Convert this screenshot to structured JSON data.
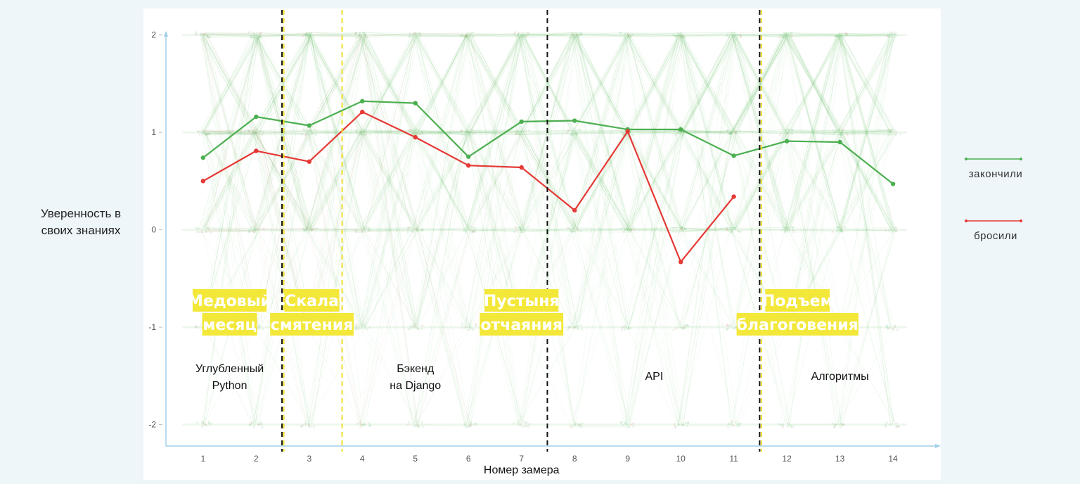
{
  "y_axis_label_lines": [
    "Уверенность в",
    "своих знаниях"
  ],
  "colors": {
    "finished": "#4caf50",
    "dropped": "#e53935",
    "phase_highlight": "#f3e83a",
    "yellow_line": "#f2dd2a",
    "black_line": "#111111",
    "axis": "#9fcfe8",
    "background": "#eef6fa"
  },
  "chart_data": {
    "type": "line",
    "xlabel": "Номер замера",
    "x": [
      1,
      2,
      3,
      4,
      5,
      6,
      7,
      8,
      9,
      10,
      11,
      12,
      13,
      14
    ],
    "x_ticks": [
      "1",
      "2",
      "3",
      "4",
      "5",
      "6",
      "7",
      "8",
      "9",
      "10",
      "11",
      "12",
      "13",
      "14"
    ],
    "y_ticks": [
      "2",
      "1",
      "0",
      "-1",
      "-2"
    ],
    "xlim": [
      0.3,
      14.9
    ],
    "ylim": [
      -2.22,
      2.07
    ],
    "grid": false,
    "legend_position": "right",
    "series": [
      {
        "name": "закончили",
        "color": "#4caf50",
        "x": [
          1,
          2,
          3,
          4,
          5,
          6,
          7,
          8,
          9,
          10,
          11,
          12,
          13,
          14
        ],
        "values": [
          0.74,
          1.16,
          1.07,
          1.32,
          1.3,
          0.75,
          1.11,
          1.12,
          1.03,
          1.03,
          0.76,
          0.91,
          0.9,
          0.47
        ]
      },
      {
        "name": "бросили",
        "color": "#e53935",
        "x": [
          1,
          2,
          3,
          4,
          5,
          6,
          7,
          8,
          9,
          10,
          11
        ],
        "values": [
          0.5,
          0.81,
          0.7,
          1.21,
          0.95,
          0.66,
          0.64,
          0.2,
          1.01,
          -0.33,
          0.34
        ]
      }
    ],
    "vertical_lines": [
      {
        "x": 2.5,
        "color": "black"
      },
      {
        "x": 2.5,
        "color": "yellow"
      },
      {
        "x": 3.6,
        "color": "yellow"
      },
      {
        "x": 7.5,
        "color": "black"
      },
      {
        "x": 11.5,
        "color": "black"
      },
      {
        "x": 11.5,
        "color": "yellow"
      }
    ],
    "phases": [
      {
        "lines": [
          "Медовый",
          "месяц"
        ],
        "x": 1.5
      },
      {
        "lines": [
          "Скала",
          "смятения"
        ],
        "x": 3.05
      },
      {
        "lines": [
          "Пустыня",
          "отчаяния"
        ],
        "x": 7.0
      },
      {
        "lines": [
          "Подъем",
          "благоговения"
        ],
        "x": 12.2
      }
    ],
    "sections": [
      {
        "lines": [
          "Углубленный",
          "Python"
        ],
        "x": 1.5
      },
      {
        "lines": [
          "Бэкенд",
          "на Django"
        ],
        "x": 5.0
      },
      {
        "lines": [
          "API"
        ],
        "x": 9.5
      },
      {
        "lines": [
          "Алгоритмы"
        ],
        "x": 13.0
      }
    ]
  }
}
